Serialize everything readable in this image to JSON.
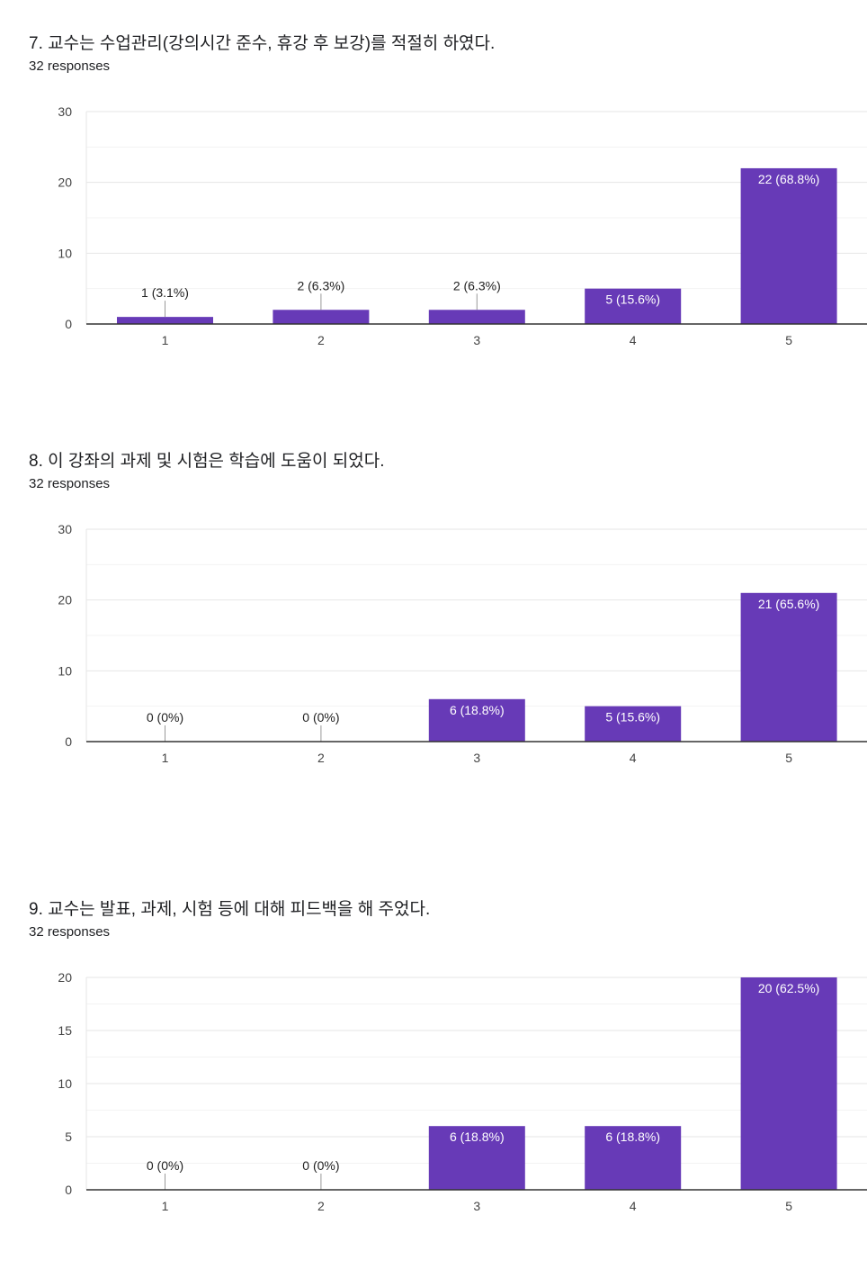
{
  "colors": {
    "bar": "#673ab7",
    "grid": "#ebebeb",
    "axis": "#333333",
    "leader": "#999999"
  },
  "chart_data": [
    {
      "type": "bar",
      "title": "7. 교수는 수업관리(강의시간 준수, 휴강 후 보강)를 적절히 하였다.",
      "subtitle": "32 responses",
      "categories": [
        "1",
        "2",
        "3",
        "4",
        "5"
      ],
      "values": [
        1,
        2,
        2,
        5,
        22
      ],
      "data_labels": [
        "1 (3.1%)",
        "2 (6.3%)",
        "2 (6.3%)",
        "5 (15.6%)",
        "22 (68.8%)"
      ],
      "ylim": [
        0,
        30
      ],
      "yticks": [
        0,
        10,
        20,
        30
      ],
      "grid": true
    },
    {
      "type": "bar",
      "title": "8. 이 강좌의 과제 및 시험은 학습에 도움이 되었다.",
      "subtitle": "32 responses",
      "categories": [
        "1",
        "2",
        "3",
        "4",
        "5"
      ],
      "values": [
        0,
        0,
        6,
        5,
        21
      ],
      "data_labels": [
        "0 (0%)",
        "0 (0%)",
        "6 (18.8%)",
        "5 (15.6%)",
        "21 (65.6%)"
      ],
      "ylim": [
        0,
        30
      ],
      "yticks": [
        0,
        10,
        20,
        30
      ],
      "grid": true
    },
    {
      "type": "bar",
      "title": "9. 교수는 발표, 과제, 시험 등에 대해 피드백을 해 주었다.",
      "subtitle": "32 responses",
      "categories": [
        "1",
        "2",
        "3",
        "4",
        "5"
      ],
      "values": [
        0,
        0,
        6,
        6,
        20
      ],
      "data_labels": [
        "0 (0%)",
        "0 (0%)",
        "6 (18.8%)",
        "6 (18.8%)",
        "20 (62.5%)"
      ],
      "ylim": [
        0,
        20
      ],
      "yticks": [
        0,
        5,
        10,
        15,
        20
      ],
      "grid": true
    }
  ]
}
